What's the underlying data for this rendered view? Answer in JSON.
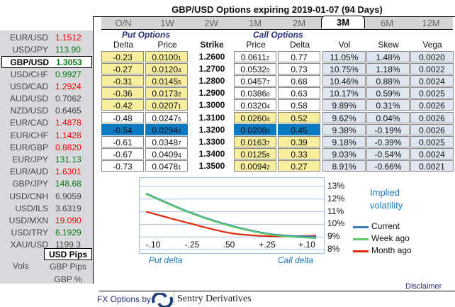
{
  "title": "GBP/USD Options expiring 2019-01-07 (94 Days)",
  "pairs": [
    {
      "name": "EUR/USD",
      "value": "1.1512",
      "color": "red"
    },
    {
      "name": "USD/JPY",
      "value": "113.90",
      "color": "green"
    },
    {
      "name": "GBP/USD",
      "value": "1.3053",
      "color": "green",
      "selected": true
    },
    {
      "name": "USD/CHF",
      "value": "0.9927",
      "color": "green"
    },
    {
      "name": "USD/CAD",
      "value": "1.2924",
      "color": "red"
    },
    {
      "name": "AUD/USD",
      "value": "0.7062",
      "color": "gray"
    },
    {
      "name": "NZD/USD",
      "value": "0.6465",
      "color": "gray"
    },
    {
      "name": "EUR/CAD",
      "value": "1.4878",
      "color": "red"
    },
    {
      "name": "EUR/CHF",
      "value": "1.1428",
      "color": "red"
    },
    {
      "name": "EUR/GBP",
      "value": "0.8820",
      "color": "red"
    },
    {
      "name": "EUR/JPY",
      "value": "131.13",
      "color": "green"
    },
    {
      "name": "EUR/AUD",
      "value": "1.6301",
      "color": "red"
    },
    {
      "name": "GBP/JPY",
      "value": "148.68",
      "color": "green"
    },
    {
      "name": "USD/CNH",
      "value": "6.9059",
      "color": "gray"
    },
    {
      "name": "USD/ILS",
      "value": "3.6319",
      "color": "gray"
    },
    {
      "name": "USD/MXN",
      "value": "19.090",
      "color": "red"
    },
    {
      "name": "USD/TRY",
      "value": "6.1929",
      "color": "green"
    },
    {
      "name": "XAU/USD",
      "value": "1199.3",
      "color": "gray"
    }
  ],
  "units": {
    "label": "Vols",
    "options": [
      "USD Pips",
      "GBP Pips",
      "GBP %"
    ],
    "selected": "USD Pips"
  },
  "tabs": [
    "O/N",
    "1W",
    "2W",
    "1M",
    "2M",
    "3M",
    "6M",
    "12M"
  ],
  "active_tab": "3M",
  "sections": {
    "put": "Put Options",
    "call": "Call Options"
  },
  "columns": [
    "Delta",
    "Price",
    "Strike",
    "Price",
    "Delta",
    "Vol",
    "Skew",
    "Vega"
  ],
  "rows": [
    {
      "pd": "-0.23",
      "pp": "0.0100",
      "pps": "1",
      "k": "1.2600",
      "cp": "0.0611",
      "cps": "2",
      "cd": "0.77",
      "vol": "11.05%",
      "skew": "1.48%",
      "vega": "0.0020",
      "put_itm": true,
      "call_itm": false
    },
    {
      "pd": "-0.27",
      "pp": "0.0120",
      "pps": "4",
      "k": "1.2700",
      "cp": "0.0532",
      "cps": "0",
      "cd": "0.73",
      "vol": "10.75%",
      "skew": "1.18%",
      "vega": "0.0022",
      "put_itm": true,
      "call_itm": false
    },
    {
      "pd": "-0.31",
      "pp": "0.0145",
      "pps": "5",
      "k": "1.2800",
      "cp": "0.0457",
      "cps": "7",
      "cd": "0.68",
      "vol": "10.46%",
      "skew": "0.88%",
      "vega": "0.0024",
      "put_itm": true,
      "call_itm": false
    },
    {
      "pd": "-0.36",
      "pp": "0.0173",
      "pps": "2",
      "k": "1.2900",
      "cp": "0.0386",
      "cps": "0",
      "cd": "0.63",
      "vol": "10.17%",
      "skew": "0.59%",
      "vega": "0.0025",
      "put_itm": true,
      "call_itm": false
    },
    {
      "pd": "-0.42",
      "pp": "0.0207",
      "pps": "1",
      "k": "1.3000",
      "cp": "0.0320",
      "cps": "4",
      "cd": "0.58",
      "vol": "9.89%",
      "skew": "0.31%",
      "vega": "0.0026",
      "put_itm": true,
      "call_itm": false
    },
    {
      "pd": "-0.48",
      "pp": "0.0247",
      "pps": "5",
      "k": "1.3100",
      "cp": "0.0260",
      "cps": "4",
      "cd": "0.52",
      "vol": "9.62%",
      "skew": "0.04%",
      "vega": "0.0026",
      "put_itm": false,
      "call_itm": true
    },
    {
      "pd": "-0.54",
      "pp": "0.0294",
      "pps": "5",
      "k": "1.3200",
      "cp": "0.0208",
      "cps": "0",
      "cd": "0.45",
      "vol": "9.38%",
      "skew": "-0.19%",
      "vega": "0.0026",
      "selected": true
    },
    {
      "pd": "-0.61",
      "pp": "0.0348",
      "pps": "7",
      "k": "1.3300",
      "cp": "0.0163",
      "cps": "7",
      "cd": "0.39",
      "vol": "9.18%",
      "skew": "-0.39%",
      "vega": "0.0025",
      "put_itm": false,
      "call_itm": true
    },
    {
      "pd": "-0.67",
      "pp": "0.0409",
      "pps": "4",
      "k": "1.3400",
      "cp": "0.0125",
      "cps": "9",
      "cd": "0.33",
      "vol": "9.03%",
      "skew": "-0.54%",
      "vega": "0.0024",
      "put_itm": false,
      "call_itm": true
    },
    {
      "pd": "-0.73",
      "pp": "0.0478",
      "pps": "1",
      "k": "1.3500",
      "cp": "0.0094",
      "cps": "2",
      "cd": "0.27",
      "vol": "8.91%",
      "skew": "-0.66%",
      "vega": "0.0021",
      "put_itm": false,
      "call_itm": true
    }
  ],
  "chart_data": {
    "type": "line",
    "title": "Implied volatility",
    "x": [
      "-.10",
      "-.25",
      ".50",
      "+.25",
      "+.10"
    ],
    "xlabel_left": "Put delta",
    "xlabel_right": "Call delta",
    "yticks": [
      "13%",
      "12%",
      "11%",
      "10%",
      "9%",
      "8%"
    ],
    "ylim": [
      8,
      13
    ],
    "series": [
      {
        "name": "Month ago",
        "color": "#e02a0a",
        "values": [
          11.0,
          10.1,
          9.3,
          9.05,
          9.1
        ]
      },
      {
        "name": "Current",
        "color": "#3a7fc0",
        "values": [
          12.45,
          11.0,
          9.9,
          9.2,
          9.0
        ]
      },
      {
        "name": "Week ago",
        "color": "#5ccc6a",
        "values": [
          12.4,
          10.95,
          9.85,
          9.15,
          8.9
        ]
      }
    ],
    "legend": [
      "Current",
      "Week ago",
      "Month ago"
    ],
    "legend_colors": [
      "#3a7fc0",
      "#5ccc6a",
      "#e02a0a"
    ]
  },
  "footer": {
    "disclaimer": "Disclaimer",
    "by": "FX Options by",
    "brand": "Sentry Derivatives"
  }
}
